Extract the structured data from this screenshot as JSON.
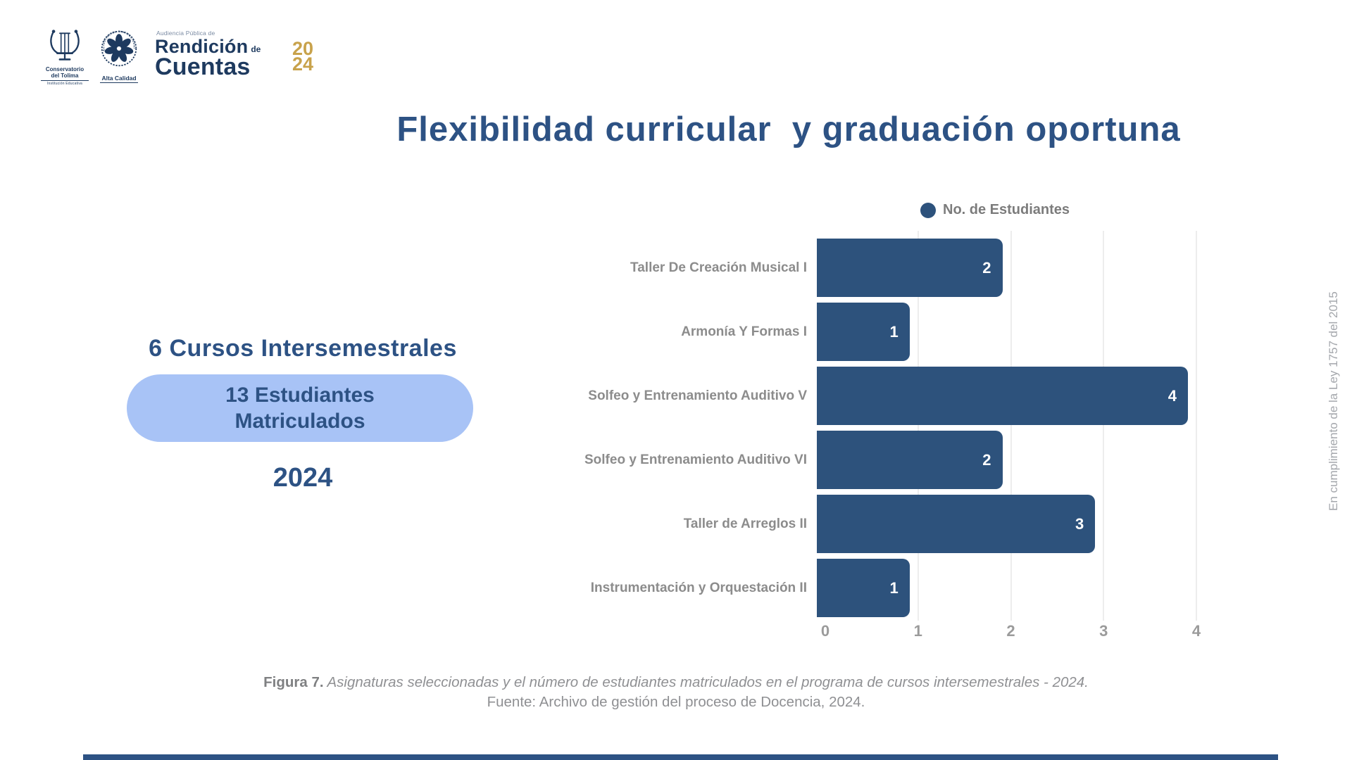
{
  "branding": {
    "logo1": {
      "line1": "Conservatorio",
      "line2": "del Tolima",
      "sub": "Institución Educativa"
    },
    "seal": {
      "ring": "Acreditación Institucional",
      "label": "Alta Calidad"
    },
    "event": {
      "kicker": "Audiencia Pública de",
      "word1": "Rendición",
      "de": "de",
      "word2": "Cuentas",
      "year_top": "20",
      "year_bottom": "24"
    }
  },
  "title": "Flexibilidad curricular  y graduación oportuna",
  "left_panel": {
    "heading": "6 Cursos Intersemestrales",
    "pill_line1": "13 Estudiantes",
    "pill_line2": "Matriculados",
    "year": "2024"
  },
  "chart_data": {
    "type": "bar",
    "orientation": "horizontal",
    "title": "",
    "legend": "No. de Estudiantes",
    "legend_position": "top",
    "categories": [
      "Taller De Creación Musical I",
      "Armonía Y Formas I",
      "Solfeo y Entrenamiento Auditivo V",
      "Solfeo y Entrenamiento Auditivo VI",
      "Taller de Arreglos II",
      "Instrumentación y Orquestación II"
    ],
    "values": [
      2,
      1,
      4,
      2,
      3,
      1
    ],
    "xlim": [
      0,
      4
    ],
    "xticks": [
      0,
      1,
      2,
      3,
      4
    ],
    "grid": true,
    "bar_color": "#2d527c",
    "value_label_color": "#ffffff"
  },
  "caption": {
    "label": "Figura 7.",
    "text": " Asignaturas seleccionadas y el número de estudiantes matriculados en el programa de cursos intersemestrales - 2024.",
    "source": "Fuente: Archivo de gestión del proceso de Docencia, 2024."
  },
  "side_note": "En cumplimiento de la Ley 1757 del 2015",
  "colors": {
    "accent_navy": "#2d5284",
    "bar_blue": "#2d527c",
    "pill_blue": "#a8c3f6",
    "gray_text": "#8c8c8c",
    "gold": "#c8a24b",
    "logo_navy": "#1e3a5f"
  }
}
